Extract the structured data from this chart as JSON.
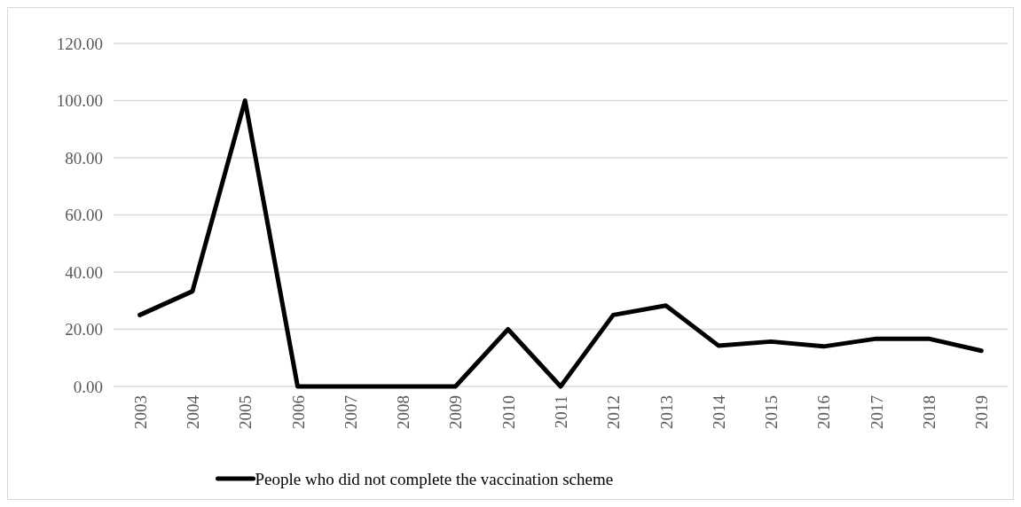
{
  "chart_data": {
    "type": "line",
    "categories": [
      "2003",
      "2004",
      "2005",
      "2006",
      "2007",
      "2008",
      "2009",
      "2010",
      "2011",
      "2012",
      "2013",
      "2014",
      "2015",
      "2016",
      "2017",
      "2018",
      "2019"
    ],
    "series": [
      {
        "name": "People who did not complete the vaccination scheme",
        "color": "#000000",
        "values": [
          25,
          33.3,
          100,
          0,
          0,
          0,
          0,
          20,
          0,
          25,
          28.3,
          14.3,
          15.7,
          14,
          16.7,
          16.7,
          12.5
        ]
      }
    ],
    "ylim": [
      0,
      120
    ],
    "yticks": [
      {
        "value": 0,
        "label": "0.00"
      },
      {
        "value": 20,
        "label": "20.00"
      },
      {
        "value": 40,
        "label": "40.00"
      },
      {
        "value": 60,
        "label": "60.00"
      },
      {
        "value": 80,
        "label": "80.00"
      },
      {
        "value": 100,
        "label": "100.00"
      },
      {
        "value": 120,
        "label": "120.00"
      }
    ],
    "grid": "y",
    "legend": "bottom",
    "marker": "none",
    "line_style": "solid"
  }
}
